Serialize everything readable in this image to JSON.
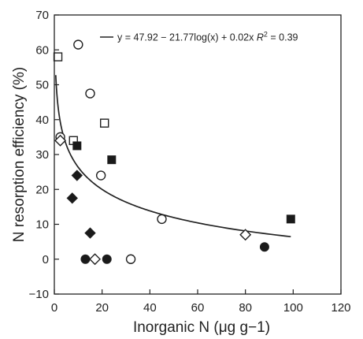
{
  "chart_data": {
    "type": "scatter",
    "xlabel": "Inorganic N (μg g−1)",
    "ylabel": "N resorption efficiency (%)",
    "xlim": [
      0,
      120
    ],
    "ylim": [
      -10,
      70
    ],
    "xticks": [
      0,
      20,
      40,
      60,
      80,
      100,
      120
    ],
    "yticks": [
      -10,
      0,
      10,
      20,
      30,
      40,
      50,
      60,
      70
    ],
    "xtick_labels": [
      "0",
      "20",
      "40",
      "60",
      "80",
      "100",
      "120"
    ],
    "ytick_labels": [
      "−10",
      "0",
      "10",
      "20",
      "30",
      "40",
      "50",
      "60",
      "70"
    ],
    "grid": false,
    "legend": {
      "placement": "top-right",
      "text": "y = 47.92 − 21.77log(x) + 0.02x",
      "r2_prefix": "R",
      "r2_exp": "2",
      "r2_value": " = 0.39"
    },
    "series": [
      {
        "marker": "open-circle",
        "points": [
          [
            10,
            61.5
          ],
          [
            15,
            47.5
          ],
          [
            2.5,
            35
          ],
          [
            19.5,
            24
          ],
          [
            45,
            11.5
          ],
          [
            32,
            0
          ]
        ]
      },
      {
        "marker": "open-square",
        "points": [
          [
            1.5,
            58
          ],
          [
            21,
            39
          ],
          [
            8,
            34
          ]
        ]
      },
      {
        "marker": "filled-square",
        "points": [
          [
            9.5,
            32.5
          ],
          [
            24,
            28.5
          ],
          [
            99,
            11.5
          ]
        ]
      },
      {
        "marker": "filled-diamond",
        "points": [
          [
            9.5,
            24
          ],
          [
            7.5,
            17.5
          ],
          [
            15,
            7.5
          ]
        ]
      },
      {
        "marker": "open-diamond",
        "points": [
          [
            2.5,
            34
          ],
          [
            80,
            7
          ],
          [
            17,
            0
          ]
        ]
      },
      {
        "marker": "filled-circle",
        "points": [
          [
            13,
            0
          ],
          [
            22,
            0
          ],
          [
            88,
            3.5
          ]
        ]
      }
    ],
    "fit": {
      "equation": "y = 47.92 - 21.77log(x) + 0.02x",
      "a": 47.92,
      "b": -21.77,
      "c": 0.02,
      "x_range": [
        0.6,
        99
      ]
    },
    "colors": {
      "ink": "#222222",
      "marker_fill_open": "#ffffff",
      "marker_fill_solid": "#1a1a1a"
    }
  }
}
